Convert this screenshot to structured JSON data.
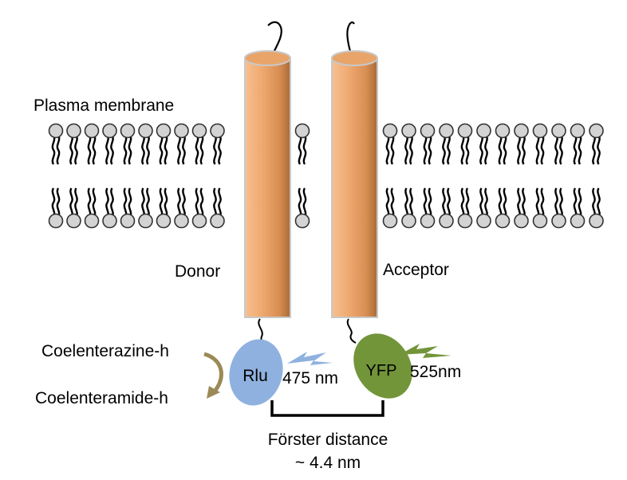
{
  "labels": {
    "membrane": "Plasma membrane",
    "donor": "Donor",
    "acceptor": "Acceptor",
    "substrate": "Coelenterazine-h",
    "product": "Coelenteramide-h",
    "rlu": "Rlu",
    "yfp": "YFP",
    "rlu_emission": "475 nm",
    "yfp_emission": "525nm",
    "distance_title": "Förster distance",
    "distance_value": "~ 4.4 nm"
  },
  "colors": {
    "cylinder": "#f0aa72",
    "cylinder_dark": "#b9773f",
    "rlu": "#8fb1df",
    "yfp": "#73953a",
    "rlu_arrow": "#8fb1df",
    "yfp_arrow": "#73953a",
    "reaction_arrow": "#9b8a55",
    "lipid_head": "#d3d3d3"
  }
}
